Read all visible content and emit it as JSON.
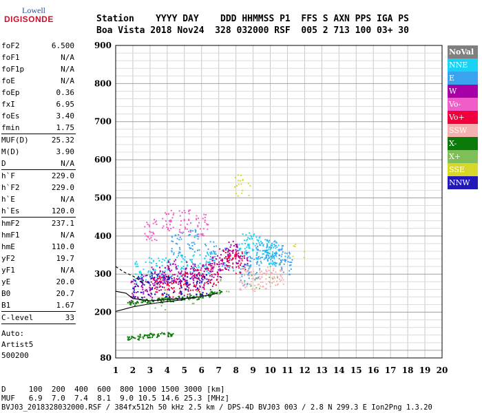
{
  "logo": {
    "line1": "Lowell",
    "line2": "DIGISONDE"
  },
  "header": {
    "row1": "Station    YYYY DAY    DDD HHMMSS P1  FFS S AXN PPS IGA PS",
    "row2": "Boa Vista 2018 Nov24  328 032000 RSF  005 2 713 100 03+ 30"
  },
  "params": {
    "group1": [
      {
        "key": "foF2",
        "val": "6.500"
      },
      {
        "key": "foF1",
        "val": "N/A"
      },
      {
        "key": "foF1p",
        "val": "N/A"
      },
      {
        "key": "foE",
        "val": "N/A"
      },
      {
        "key": "foEp",
        "val": "0.36"
      },
      {
        "key": "fxI",
        "val": "6.95"
      },
      {
        "key": "foEs",
        "val": "3.40"
      },
      {
        "key": "fmin",
        "val": "1.75"
      }
    ],
    "group2": [
      {
        "key": "MUF(D)",
        "val": "25.32"
      },
      {
        "key": "M(D)",
        "val": "3.90"
      },
      {
        "key": "D",
        "val": "N/A"
      }
    ],
    "group3": [
      {
        "key": "h`F",
        "val": "229.0"
      },
      {
        "key": "h`F2",
        "val": "229.0"
      },
      {
        "key": "h`E",
        "val": "N/A"
      },
      {
        "key": "h`Es",
        "val": "120.0"
      }
    ],
    "group4": [
      {
        "key": "hmF2",
        "val": "237.1"
      },
      {
        "key": "hmF1",
        "val": "N/A"
      },
      {
        "key": "hmE",
        "val": "110.0"
      },
      {
        "key": "yF2",
        "val": "19.7"
      },
      {
        "key": "yF1",
        "val": "N/A"
      },
      {
        "key": "yE",
        "val": "20.0"
      },
      {
        "key": "B0",
        "val": "20.7"
      },
      {
        "key": "B1",
        "val": "1.67"
      }
    ],
    "group5": [
      {
        "key": "C-level",
        "val": "33"
      }
    ],
    "auto": [
      "Auto:",
      "Artist5",
      "500200"
    ]
  },
  "legend": [
    {
      "label": "NoVal",
      "color": "#7f7f7f"
    },
    {
      "label": "NNE",
      "color": "#19d3f5"
    },
    {
      "label": "E",
      "color": "#3aa3f0"
    },
    {
      "label": "W",
      "color": "#a800a8"
    },
    {
      "label": "Vo-",
      "color": "#f05cc8"
    },
    {
      "label": "Vo+",
      "color": "#f0003c"
    },
    {
      "label": "SSW",
      "color": "#f5b0b0"
    },
    {
      "label": "X-",
      "color": "#0a7a0a"
    },
    {
      "label": "X+",
      "color": "#7fbf5a"
    },
    {
      "label": "SSE",
      "color": "#d7d72a"
    },
    {
      "label": "NNW",
      "color": "#2218b8"
    }
  ],
  "footer": {
    "line1": "D     100  200  400  600  800 1000 1500 3000 [km]",
    "line2": "MUF   6.9  7.0  7.4  8.1  9.0 10.5 14.6 25.3 [MHz]",
    "line3": "BVJ03_2018328032000.RSF / 384fx512h 50 kHz 2.5 km / DPS-4D BVJ03 003 / 2.8 N 299.3 E Ion2Png 1.3.20"
  },
  "chart_data": {
    "type": "scatter",
    "title": "",
    "xlabel": "",
    "ylabel": "",
    "xlim": [
      1,
      20
    ],
    "ylim": [
      80,
      900
    ],
    "x_ticks": [
      1,
      2,
      3,
      4,
      5,
      6,
      7,
      8,
      9,
      10,
      11,
      12,
      13,
      14,
      15,
      16,
      17,
      18,
      19,
      20
    ],
    "y_ticks": [
      80,
      200,
      300,
      400,
      500,
      600,
      700,
      800,
      900
    ],
    "grid": true,
    "legend_position": "right",
    "series": [
      {
        "name": "NNE",
        "x": [
          2.4,
          3.2,
          4.0,
          4.8,
          5.6,
          6.4,
          8.5,
          9.0,
          9.5,
          10.0,
          10.2
        ],
        "y": [
          305,
          315,
          318,
          322,
          325,
          330,
          380,
          380,
          370,
          360,
          350
        ]
      },
      {
        "name": "E",
        "x": [
          4.5,
          5.5,
          6.5,
          7.5,
          8.5,
          9.0,
          9.5,
          10.0,
          10.5,
          10.9
        ],
        "y": [
          380,
          390,
          360,
          340,
          300,
          320,
          360,
          370,
          350,
          330
        ]
      },
      {
        "name": "W",
        "x": [
          2.2,
          2.8,
          3.3,
          3.8,
          4.3,
          4.8,
          5.3,
          5.8,
          6.3,
          6.8,
          7.3,
          7.8,
          8.3
        ],
        "y": [
          260,
          270,
          290,
          300,
          310,
          305,
          300,
          295,
          300,
          320,
          340,
          360,
          350
        ]
      },
      {
        "name": "Vo-",
        "x": [
          3.0,
          4.0,
          5.0,
          6.0
        ],
        "y": [
          420,
          440,
          440,
          430
        ]
      },
      {
        "name": "Vo+",
        "x": [
          3.5,
          4.2,
          5.0,
          5.8,
          6.6,
          7.5,
          8.2
        ],
        "y": [
          265,
          270,
          275,
          285,
          300,
          340,
          330
        ]
      },
      {
        "name": "SSW",
        "x": [
          8.5,
          9.2,
          9.8,
          10.4
        ],
        "y": [
          290,
          285,
          290,
          300
        ]
      },
      {
        "name": "X-",
        "x": [
          2.0,
          2.7,
          3.4,
          4.1,
          4.8,
          5.5,
          6.2,
          6.8,
          2.0,
          2.6,
          3.3,
          4.0
        ],
        "y": [
          225,
          230,
          232,
          235,
          238,
          240,
          245,
          255,
          135,
          138,
          141,
          143
        ]
      },
      {
        "name": "X+",
        "x": [
          3.6,
          5.5,
          7.3,
          9.0,
          10.2
        ],
        "y": [
          232,
          243,
          268,
          288,
          300
        ]
      },
      {
        "name": "SSE",
        "x": [
          8.1,
          8.4,
          8.6,
          11.6
        ],
        "y": [
          535,
          532,
          525,
          360
        ]
      },
      {
        "name": "NNW",
        "x": [
          2.3,
          3.1,
          4.0,
          5.0,
          6.0
        ],
        "y": [
          270,
          275,
          268,
          270,
          275
        ]
      }
    ]
  }
}
